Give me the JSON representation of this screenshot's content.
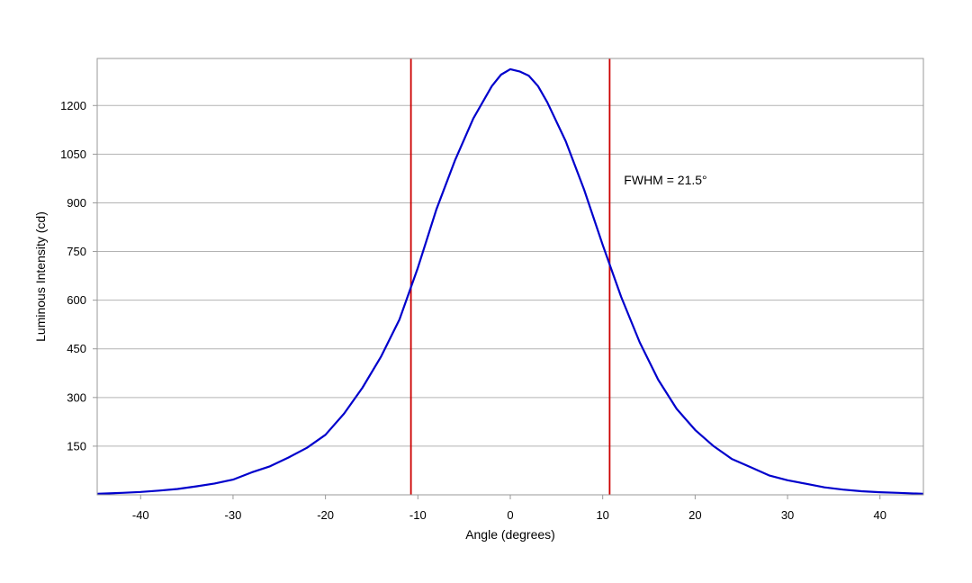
{
  "chart_data": {
    "type": "line",
    "xlabel": "Angle (degrees)",
    "ylabel": "Luminous Intensity (cd)",
    "xlim": [
      -44.7,
      44.7
    ],
    "ylim": [
      0,
      1345
    ],
    "x_ticks": [
      -40,
      -30,
      -20,
      -10,
      0,
      10,
      20,
      30,
      40
    ],
    "y_ticks": [
      150,
      300,
      450,
      600,
      750,
      900,
      1050,
      1200
    ],
    "grid": "horizontal",
    "series": [
      {
        "color": "#0000cc",
        "x": [
          -44.7,
          -42,
          -40,
          -38,
          -36,
          -34,
          -32,
          -30,
          -28,
          -26,
          -24,
          -22,
          -20,
          -18,
          -16,
          -14,
          -12,
          -10,
          -8,
          -6,
          -4,
          -2,
          -1,
          0,
          1,
          2,
          3,
          4,
          6,
          8,
          10,
          12,
          14,
          16,
          18,
          20,
          22,
          24,
          26,
          28,
          30,
          32,
          34,
          36,
          38,
          40,
          42,
          44.7
        ],
        "y": [
          3,
          6,
          9,
          13,
          18,
          26,
          35,
          47,
          69,
          88,
          115,
          145,
          185,
          250,
          330,
          425,
          540,
          700,
          880,
          1030,
          1160,
          1260,
          1295,
          1312,
          1305,
          1292,
          1260,
          1210,
          1090,
          940,
          770,
          610,
          470,
          355,
          265,
          200,
          150,
          110,
          85,
          60,
          45,
          34,
          23,
          16,
          11,
          8,
          6,
          3
        ]
      }
    ],
    "vlines": [
      {
        "x": -10.75,
        "color": "#cc0000"
      },
      {
        "x": 10.75,
        "color": "#cc0000"
      }
    ],
    "annotations": [
      {
        "text": "FWHM = 21.5°",
        "x": 12.3,
        "y": 970
      }
    ]
  }
}
